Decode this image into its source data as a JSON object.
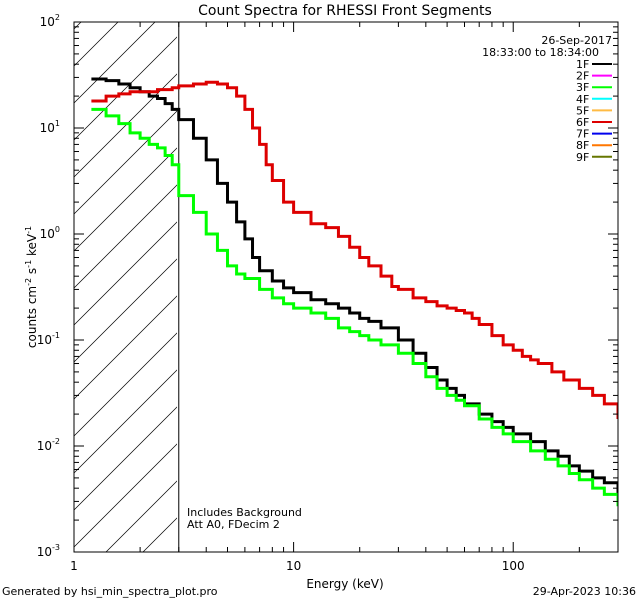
{
  "chart_data": {
    "type": "line",
    "title": "Count Spectra for RHESSI Front Segments",
    "date": "26-Sep-2017",
    "time_range": "18:33:00 to 18:34:00",
    "xlabel": "Energy (keV)",
    "ylabel_base": "counts cm",
    "ylabel_exp1": "-2",
    "ylabel_mid1": " s",
    "ylabel_exp2": "-1",
    "ylabel_mid2": " keV",
    "ylabel_exp3": "-1",
    "xscale": "log",
    "yscale": "log",
    "xlim": [
      1.0,
      300
    ],
    "ylim": [
      0.001,
      100
    ],
    "x_ticks": [
      {
        "value": 1,
        "label": "1"
      },
      {
        "value": 10,
        "label": "10"
      },
      {
        "value": 100,
        "label": "100"
      }
    ],
    "y_ticks": [
      {
        "value": 0.001,
        "base": "10",
        "exp": "-3"
      },
      {
        "value": 0.01,
        "base": "10",
        "exp": "-2"
      },
      {
        "value": 0.1,
        "base": "10",
        "exp": "-1"
      },
      {
        "value": 1,
        "base": "10",
        "exp": "0"
      },
      {
        "value": 10,
        "base": "10",
        "exp": "1"
      },
      {
        "value": 100,
        "base": "10",
        "exp": "2"
      }
    ],
    "hatched_region_xmax": 3.0,
    "annotations": [
      "Includes Background",
      "Att A0, FDecim 2"
    ],
    "legend": [
      {
        "label": "1F",
        "color": "#000000"
      },
      {
        "label": "2F",
        "color": "#ff00ff"
      },
      {
        "label": "3F",
        "color": "#00ff00"
      },
      {
        "label": "4F",
        "color": "#00ffff"
      },
      {
        "label": "5F",
        "color": "#ffbb44"
      },
      {
        "label": "6F",
        "color": "#dd0000"
      },
      {
        "label": "7F",
        "color": "#0000ee"
      },
      {
        "label": "8F",
        "color": "#ff7700"
      },
      {
        "label": "9F",
        "color": "#667700"
      }
    ],
    "series": [
      {
        "name": "1F",
        "color": "#000000",
        "points": [
          [
            1.2,
            29
          ],
          [
            1.4,
            28
          ],
          [
            1.6,
            26
          ],
          [
            1.8,
            24
          ],
          [
            2.0,
            22
          ],
          [
            2.2,
            20
          ],
          [
            2.4,
            19
          ],
          [
            2.6,
            17
          ],
          [
            2.8,
            15
          ],
          [
            3.0,
            12
          ],
          [
            3.5,
            8
          ],
          [
            4.0,
            5.0
          ],
          [
            4.5,
            3.0
          ],
          [
            5.0,
            2.0
          ],
          [
            5.5,
            1.3
          ],
          [
            6.0,
            0.9
          ],
          [
            6.5,
            0.6
          ],
          [
            7.0,
            0.45
          ],
          [
            8.0,
            0.36
          ],
          [
            9.0,
            0.31
          ],
          [
            10.0,
            0.28
          ],
          [
            12.0,
            0.24
          ],
          [
            14.0,
            0.22
          ],
          [
            16.0,
            0.2
          ],
          [
            18.0,
            0.18
          ],
          [
            20.0,
            0.16
          ],
          [
            22.0,
            0.15
          ],
          [
            25.0,
            0.13
          ],
          [
            30.0,
            0.1
          ],
          [
            35.0,
            0.075
          ],
          [
            40.0,
            0.055
          ],
          [
            45.0,
            0.042
          ],
          [
            50.0,
            0.035
          ],
          [
            55.0,
            0.03
          ],
          [
            60.0,
            0.025
          ],
          [
            70.0,
            0.02
          ],
          [
            80.0,
            0.017
          ],
          [
            90.0,
            0.015
          ],
          [
            100.0,
            0.013
          ],
          [
            120.0,
            0.011
          ],
          [
            140.0,
            0.009
          ],
          [
            160.0,
            0.008
          ],
          [
            180.0,
            0.0065
          ],
          [
            200.0,
            0.0058
          ],
          [
            230.0,
            0.005
          ],
          [
            260.0,
            0.0045
          ],
          [
            300.0,
            0.0035
          ]
        ]
      },
      {
        "name": "3F",
        "color": "#00ff00",
        "points": [
          [
            1.2,
            15
          ],
          [
            1.4,
            13
          ],
          [
            1.6,
            11
          ],
          [
            1.8,
            9
          ],
          [
            2.0,
            8
          ],
          [
            2.2,
            7
          ],
          [
            2.4,
            6.5
          ],
          [
            2.6,
            5.5
          ],
          [
            2.8,
            4.5
          ],
          [
            3.0,
            2.3
          ],
          [
            3.5,
            1.6
          ],
          [
            4.0,
            1.0
          ],
          [
            4.5,
            0.7
          ],
          [
            5.0,
            0.5
          ],
          [
            5.5,
            0.42
          ],
          [
            6.0,
            0.38
          ],
          [
            7.0,
            0.3
          ],
          [
            8.0,
            0.25
          ],
          [
            9.0,
            0.22
          ],
          [
            10.0,
            0.2
          ],
          [
            12.0,
            0.18
          ],
          [
            14.0,
            0.16
          ],
          [
            16.0,
            0.13
          ],
          [
            18.0,
            0.12
          ],
          [
            20.0,
            0.11
          ],
          [
            22.0,
            0.1
          ],
          [
            25.0,
            0.09
          ],
          [
            30.0,
            0.075
          ],
          [
            35.0,
            0.06
          ],
          [
            40.0,
            0.045
          ],
          [
            45.0,
            0.035
          ],
          [
            50.0,
            0.03
          ],
          [
            55.0,
            0.027
          ],
          [
            60.0,
            0.024
          ],
          [
            70.0,
            0.018
          ],
          [
            80.0,
            0.015
          ],
          [
            90.0,
            0.013
          ],
          [
            100.0,
            0.011
          ],
          [
            120.0,
            0.009
          ],
          [
            140.0,
            0.0075
          ],
          [
            160.0,
            0.0065
          ],
          [
            180.0,
            0.0055
          ],
          [
            200.0,
            0.0048
          ],
          [
            230.0,
            0.004
          ],
          [
            260.0,
            0.0035
          ],
          [
            300.0,
            0.0027
          ]
        ]
      },
      {
        "name": "6F",
        "color": "#dd0000",
        "points": [
          [
            1.2,
            18
          ],
          [
            1.4,
            20
          ],
          [
            1.6,
            21
          ],
          [
            1.8,
            22
          ],
          [
            2.0,
            22
          ],
          [
            2.2,
            22
          ],
          [
            2.4,
            23
          ],
          [
            2.6,
            23
          ],
          [
            2.8,
            24
          ],
          [
            3.0,
            25
          ],
          [
            3.5,
            26
          ],
          [
            4.0,
            27
          ],
          [
            4.5,
            26
          ],
          [
            5.0,
            24
          ],
          [
            5.5,
            20
          ],
          [
            6.0,
            15
          ],
          [
            6.5,
            10
          ],
          [
            7.0,
            7
          ],
          [
            7.5,
            4.5
          ],
          [
            8.0,
            3.2
          ],
          [
            9.0,
            2.0
          ],
          [
            10.0,
            1.6
          ],
          [
            12.0,
            1.25
          ],
          [
            14.0,
            1.15
          ],
          [
            16.0,
            0.95
          ],
          [
            18.0,
            0.75
          ],
          [
            20.0,
            0.6
          ],
          [
            22.0,
            0.5
          ],
          [
            25.0,
            0.4
          ],
          [
            28.0,
            0.32
          ],
          [
            30.0,
            0.3
          ],
          [
            35.0,
            0.25
          ],
          [
            40.0,
            0.23
          ],
          [
            45.0,
            0.21
          ],
          [
            50.0,
            0.2
          ],
          [
            55.0,
            0.19
          ],
          [
            60.0,
            0.18
          ],
          [
            65.0,
            0.16
          ],
          [
            70.0,
            0.14
          ],
          [
            80.0,
            0.11
          ],
          [
            90.0,
            0.09
          ],
          [
            100.0,
            0.08
          ],
          [
            110.0,
            0.07
          ],
          [
            120.0,
            0.065
          ],
          [
            130.0,
            0.06
          ],
          [
            150.0,
            0.05
          ],
          [
            170.0,
            0.042
          ],
          [
            200.0,
            0.035
          ],
          [
            230.0,
            0.03
          ],
          [
            260.0,
            0.025
          ],
          [
            300.0,
            0.018
          ]
        ]
      }
    ]
  },
  "footer": {
    "left": "Generated by hsi_min_spectra_plot.pro",
    "right": "29-Apr-2023 10:36"
  }
}
